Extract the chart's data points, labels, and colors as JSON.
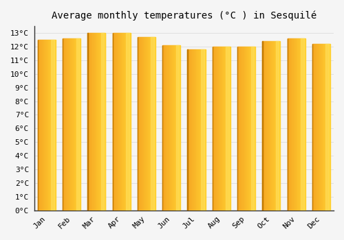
{
  "title": "Average monthly temperatures (°C ) in Sesquilé",
  "months": [
    "Jan",
    "Feb",
    "Mar",
    "Apr",
    "May",
    "Jun",
    "Jul",
    "Aug",
    "Sep",
    "Oct",
    "Nov",
    "Dec"
  ],
  "temperatures": [
    12.5,
    12.6,
    13.0,
    13.0,
    12.7,
    12.1,
    11.8,
    12.0,
    12.0,
    12.4,
    12.6,
    12.2
  ],
  "bar_color_left": "#F5A623",
  "bar_color_right": "#FFD700",
  "bar_color_mid": "#FFC030",
  "ylim": [
    0,
    13.5
  ],
  "ytick_step": 1,
  "background_color": "#f5f5f5",
  "plot_bg_color": "#f5f5f5",
  "grid_color": "#e0e0e0",
  "title_fontsize": 10,
  "tick_fontsize": 8,
  "font_family": "monospace"
}
